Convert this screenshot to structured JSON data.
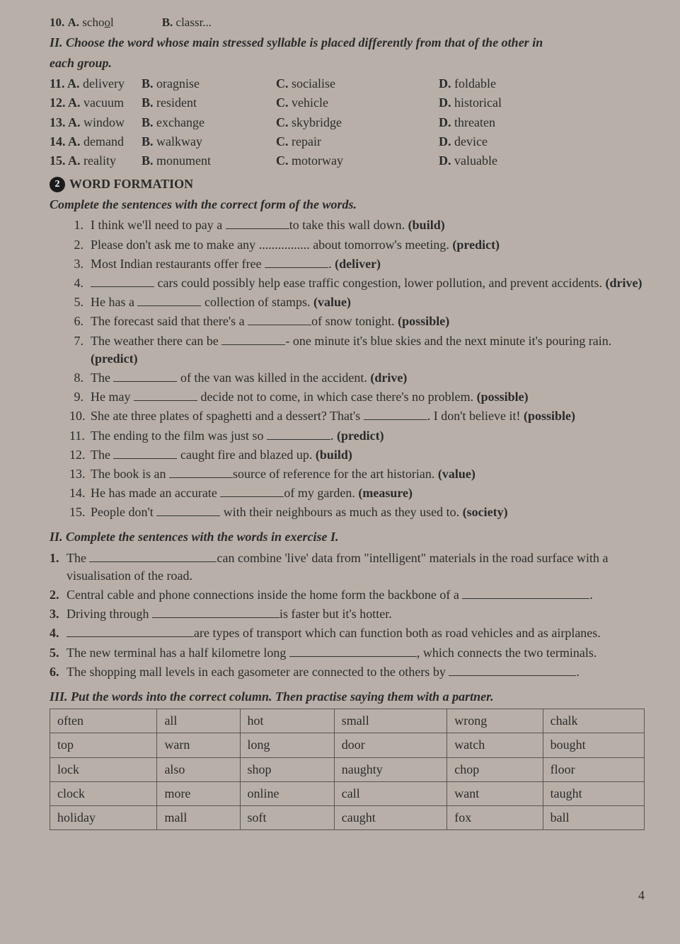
{
  "q10": {
    "num": "10.",
    "a_label": "A.",
    "a_word_pre": "scho",
    "a_word_u": "o",
    "a_word_post": "l",
    "b_label": "B.",
    "b_word": "classr..."
  },
  "sec1": {
    "title": "II. Choose the word whose main stressed syllable is placed differently from that of the other in",
    "title2": "each group.",
    "rows": [
      {
        "n": "11.",
        "a": "A.",
        "aw": "delivery",
        "b": "B.",
        "bw": "oragnise",
        "c": "C.",
        "cw": "socialise",
        "d": "D.",
        "dw": "foldable"
      },
      {
        "n": "12.",
        "a": "A.",
        "aw": "vacuum",
        "b": "B.",
        "bw": "resident",
        "c": "C.",
        "cw": "vehicle",
        "d": "D.",
        "dw": "historical"
      },
      {
        "n": "13.",
        "a": "A.",
        "aw": "window",
        "b": "B.",
        "bw": "exchange",
        "c": "C.",
        "cw": "skybridge",
        "d": "D.",
        "dw": "threaten"
      },
      {
        "n": "14.",
        "a": "A.",
        "aw": "demand",
        "b": "B.",
        "bw": "walkway",
        "c": "C.",
        "cw": "repair",
        "d": "D.",
        "dw": "device"
      },
      {
        "n": "15.",
        "a": "A.",
        "aw": "reality",
        "b": "B.",
        "bw": "monument",
        "c": "C.",
        "cw": "motorway",
        "d": "D.",
        "dw": "valuable"
      }
    ]
  },
  "sec2": {
    "badge": "2",
    "heading": "WORD FORMATION",
    "instr": "Complete the sentences with the correct form of the words.",
    "items": [
      {
        "n": "1.",
        "pre": "I think we'll need to pay a ",
        "post": "to take this wall down. ",
        "hint": "(build)"
      },
      {
        "n": "2.",
        "pre": "Please don't ask me to make any ",
        "dots": true,
        "post": " about tomorrow's meeting. ",
        "hint": "(predict)"
      },
      {
        "n": "3.",
        "pre": "Most Indian restaurants offer free ",
        "post": ". ",
        "hint": "(deliver)"
      },
      {
        "n": "4.",
        "pre": "",
        "post": " cars could possibly help ease traffic congestion, lower pollution, and prevent accidents. ",
        "hint": "(drive)"
      },
      {
        "n": "5.",
        "pre": "He has a ",
        "post": " collection of stamps. ",
        "hint": "(value)"
      },
      {
        "n": "6.",
        "pre": "The forecast said that there's a ",
        "post": "of snow tonight. ",
        "hint": "(possible)"
      },
      {
        "n": "7.",
        "pre": "The weather there can be ",
        "post": "- one minute it's blue skies and the next minute it's pouring rain. ",
        "hint": "(predict)"
      },
      {
        "n": "8.",
        "pre": "The ",
        "post": " of the van was killed in the accident. ",
        "hint": "(drive)"
      },
      {
        "n": "9.",
        "pre": "He may ",
        "post": " decide not to come, in which case there's no problem. ",
        "hint": "(possible)"
      },
      {
        "n": "10.",
        "pre": "She ate three plates of spaghetti and a dessert? That's ",
        "post": ". I don't believe it! ",
        "hint": "(possible)"
      },
      {
        "n": "11.",
        "pre": "The ending to the film was just so ",
        "post": ". ",
        "hint": "(predict)"
      },
      {
        "n": "12.",
        "pre": "The ",
        "post": " caught fire and blazed up. ",
        "hint": "(build)"
      },
      {
        "n": "13.",
        "pre": "The book is an ",
        "post": "source of reference for the art historian. ",
        "hint": "(value)"
      },
      {
        "n": "14.",
        "pre": "He has made an accurate ",
        "post": "of my garden. ",
        "hint": "(measure)"
      },
      {
        "n": "15.",
        "pre": "People don't ",
        "post": " with their neighbours as much as they used to. ",
        "hint": "(society)"
      }
    ]
  },
  "sec3": {
    "title": "II. Complete the sentences with the words in exercise I.",
    "items": [
      {
        "n": "1.",
        "pre": "The ",
        "post": "can combine 'live' data from \"intelligent\" materials in the road surface with a visualisation of the road."
      },
      {
        "n": "2.",
        "pre": "Central cable and phone connections inside the home form the backbone of a ",
        "post": "."
      },
      {
        "n": "3.",
        "pre": "Driving through ",
        "post": "is faster but it's hotter."
      },
      {
        "n": "4.",
        "pre": "",
        "post": "are types of transport which can function both as road vehicles and as airplanes."
      },
      {
        "n": "5.",
        "pre": "The new terminal has a half kilometre long ",
        "post": ", which connects the two terminals."
      },
      {
        "n": "6.",
        "pre": "The shopping mall levels in each gasometer are connected to the others by ",
        "post": "."
      }
    ]
  },
  "sec4": {
    "title": "III. Put the words into the correct column. Then practise saying them with a partner.",
    "rows": [
      [
        "often",
        "all",
        "hot",
        "small",
        "wrong",
        "chalk"
      ],
      [
        "top",
        "warn",
        "long",
        "door",
        "watch",
        "bought"
      ],
      [
        "lock",
        "also",
        "shop",
        "naughty",
        "chop",
        "floor"
      ],
      [
        "clock",
        "more",
        "online",
        "call",
        "want",
        "taught"
      ],
      [
        "holiday",
        "mall",
        "soft",
        "caught",
        "fox",
        "ball"
      ]
    ]
  },
  "page": "4"
}
